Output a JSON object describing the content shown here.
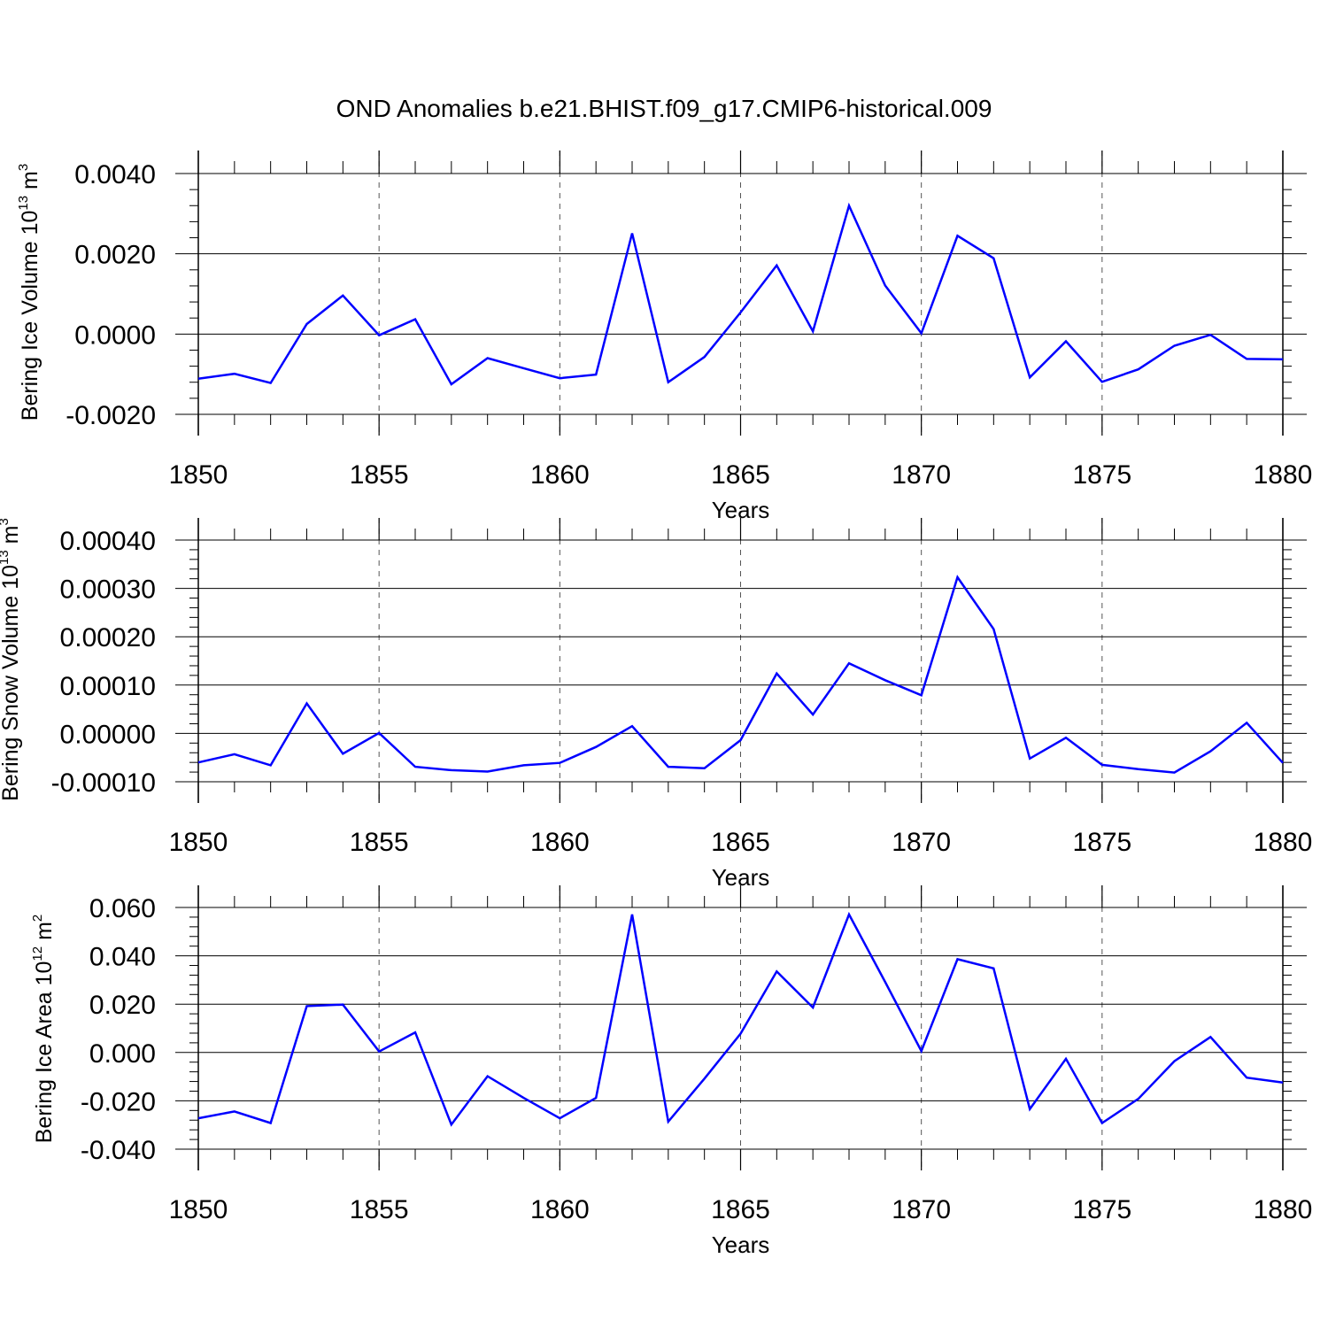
{
  "figure_title": "OND Anomalies b.e21.BHIST.f09_g17.CMIP6-historical.009",
  "colors": {
    "line": "#0000ff",
    "axis": "#000000",
    "grid": "#555555"
  },
  "chart_data": [
    {
      "type": "line",
      "title": "",
      "ylabel": {
        "text": "Bering Ice Volume 10",
        "sup": "13",
        "unit": " m",
        "unit_sup": "3"
      },
      "xlabel": "Years",
      "xlim": [
        1850,
        1880
      ],
      "ylim": [
        -0.002,
        0.004
      ],
      "yticks": [
        -0.002,
        0.0,
        0.002,
        0.004
      ],
      "ytick_labels": [
        "-0.0020",
        "0.0000",
        "0.0020",
        "0.0040"
      ],
      "xticks": [
        1850,
        1855,
        1860,
        1865,
        1870,
        1875,
        1880
      ],
      "xtick_labels": [
        "1850",
        "1855",
        "1860",
        "1865",
        "1870",
        "1875",
        "1880"
      ],
      "x": [
        1850,
        1851,
        1852,
        1853,
        1854,
        1855,
        1856,
        1857,
        1858,
        1859,
        1860,
        1861,
        1862,
        1863,
        1864,
        1865,
        1866,
        1867,
        1868,
        1869,
        1870,
        1871,
        1872,
        1873,
        1874,
        1875,
        1876,
        1877,
        1878,
        1879,
        1880
      ],
      "series": [
        {
          "name": "Bering Ice Volume",
          "values": [
            -0.00111,
            -0.00099,
            -0.00122,
            0.00025,
            0.00096,
            -3e-05,
            0.00037,
            -0.00125,
            -0.0006,
            -0.00085,
            -0.0011,
            -0.00101,
            0.00251,
            -0.0012,
            -0.00057,
            0.00054,
            0.00171,
            7e-05,
            0.0032,
            0.00121,
            2e-05,
            0.00245,
            0.00189,
            -0.00108,
            -0.00018,
            -0.00119,
            -0.00088,
            -0.00029,
            -2e-05,
            -0.00062,
            -0.00063
          ]
        }
      ]
    },
    {
      "type": "line",
      "title": "",
      "ylabel": {
        "text": "Bering Snow Volume 10",
        "sup": "13",
        "unit": " m",
        "unit_sup": "3"
      },
      "xlabel": "Years",
      "xlim": [
        1850,
        1880
      ],
      "ylim": [
        -0.0001,
        0.0004
      ],
      "yticks": [
        -0.0001,
        0.0,
        0.0001,
        0.0002,
        0.0003,
        0.0004
      ],
      "ytick_labels": [
        "-0.00010",
        "0.00000",
        "0.00010",
        "0.00020",
        "0.00030",
        "0.00040"
      ],
      "xticks": [
        1850,
        1855,
        1860,
        1865,
        1870,
        1875,
        1880
      ],
      "xtick_labels": [
        "1850",
        "1855",
        "1860",
        "1865",
        "1870",
        "1875",
        "1880"
      ],
      "x": [
        1850,
        1851,
        1852,
        1853,
        1854,
        1855,
        1856,
        1857,
        1858,
        1859,
        1860,
        1861,
        1862,
        1863,
        1864,
        1865,
        1866,
        1867,
        1868,
        1869,
        1870,
        1871,
        1872,
        1873,
        1874,
        1875,
        1876,
        1877,
        1878,
        1879,
        1880
      ],
      "series": [
        {
          "name": "Bering Snow Volume",
          "values": [
            -6e-05,
            -4.3e-05,
            -6.6e-05,
            6.2e-05,
            -4.2e-05,
            1e-06,
            -6.9e-05,
            -7.6e-05,
            -7.9e-05,
            -6.6e-05,
            -6.1e-05,
            -2.8e-05,
            1.5e-05,
            -6.9e-05,
            -7.2e-05,
            -1.4e-05,
            0.000124,
            3.9e-05,
            0.000145,
            0.00011,
            7.9e-05,
            0.000323,
            0.000216,
            -5.2e-05,
            -9e-06,
            -6.5e-05,
            -7.4e-05,
            -8.1e-05,
            -3.7e-05,
            2.2e-05,
            -6.1e-05
          ]
        }
      ]
    },
    {
      "type": "line",
      "title": "",
      "ylabel": {
        "text": "Bering Ice Area 10",
        "sup": "12",
        "unit": " m",
        "unit_sup": "2"
      },
      "xlabel": "Years",
      "xlim": [
        1850,
        1880
      ],
      "ylim": [
        -0.04,
        0.06
      ],
      "yticks": [
        -0.04,
        -0.02,
        0.0,
        0.02,
        0.04,
        0.06
      ],
      "ytick_labels": [
        "-0.040",
        "-0.020",
        "0.000",
        "0.020",
        "0.040",
        "0.060"
      ],
      "xticks": [
        1850,
        1855,
        1860,
        1865,
        1870,
        1875,
        1880
      ],
      "xtick_labels": [
        "1850",
        "1855",
        "1860",
        "1865",
        "1870",
        "1875",
        "1880"
      ],
      "x": [
        1850,
        1851,
        1852,
        1853,
        1854,
        1855,
        1856,
        1857,
        1858,
        1859,
        1860,
        1861,
        1862,
        1863,
        1864,
        1865,
        1866,
        1867,
        1868,
        1869,
        1870,
        1871,
        1872,
        1873,
        1874,
        1875,
        1876,
        1877,
        1878,
        1879,
        1880
      ],
      "series": [
        {
          "name": "Bering Ice Area",
          "values": [
            -0.0272,
            -0.0244,
            -0.0292,
            0.0192,
            0.0198,
            0.0004,
            0.0083,
            -0.0298,
            -0.0098,
            -0.0188,
            -0.0272,
            -0.0188,
            0.0571,
            -0.0286,
            -0.0108,
            0.0078,
            0.0335,
            0.0186,
            0.0571,
            0.0292,
            0.0006,
            0.0386,
            0.0348,
            -0.0234,
            -0.0026,
            -0.0292,
            -0.0192,
            -0.0036,
            0.0064,
            -0.0104,
            -0.0124
          ]
        }
      ]
    }
  ]
}
